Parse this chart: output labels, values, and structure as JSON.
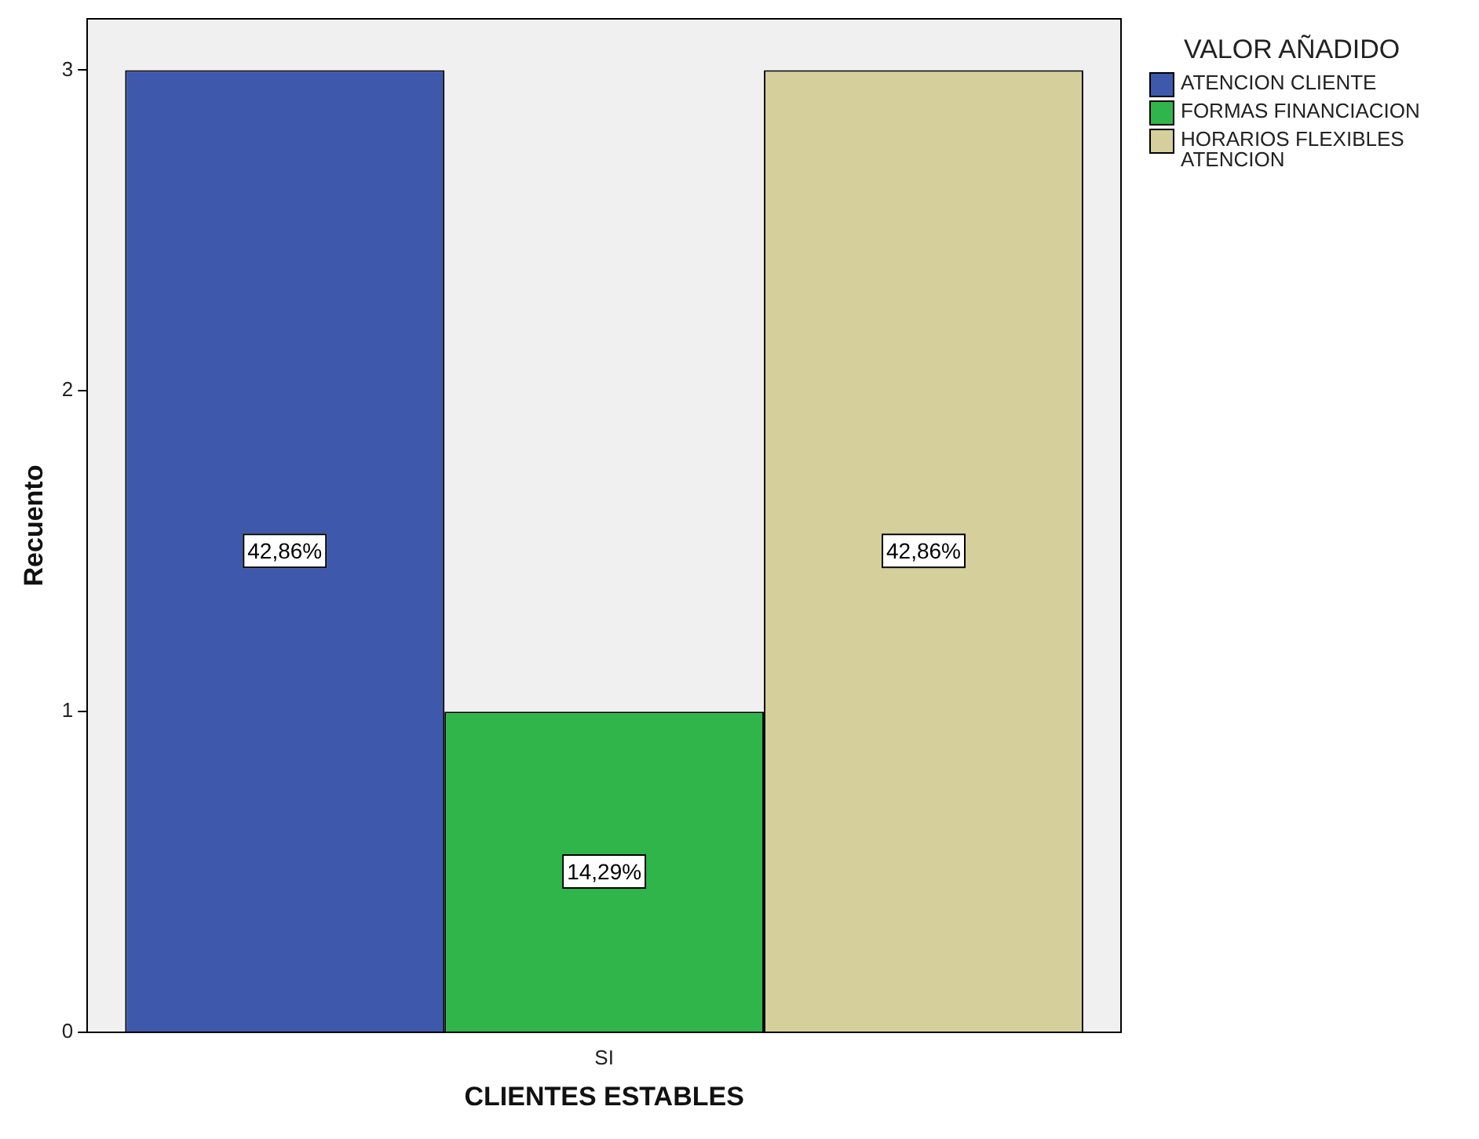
{
  "chart_data": {
    "type": "bar",
    "xlabel": "CLIENTES ESTABLES",
    "ylabel": "Recuento",
    "legend_title": "VALOR AÑADIDO",
    "legend": "top right",
    "grid": false,
    "categories": [
      "SI"
    ],
    "series": [
      {
        "name": "ATENCION CLIENTE",
        "color": "#3e58ac",
        "values": [
          3
        ]
      },
      {
        "name": "FORMAS FINANCIACION",
        "color": "#2fb54a",
        "values": [
          1
        ]
      },
      {
        "name": "HORARIOS FLEXIBLES ATENCION",
        "color": "#d4cf9b",
        "values": [
          3
        ]
      }
    ],
    "annotations": [
      "42,86%",
      "14,29%",
      "42,86%"
    ],
    "ylim": [
      0,
      3.16
    ],
    "yticks": [
      0,
      1,
      2,
      3
    ]
  }
}
